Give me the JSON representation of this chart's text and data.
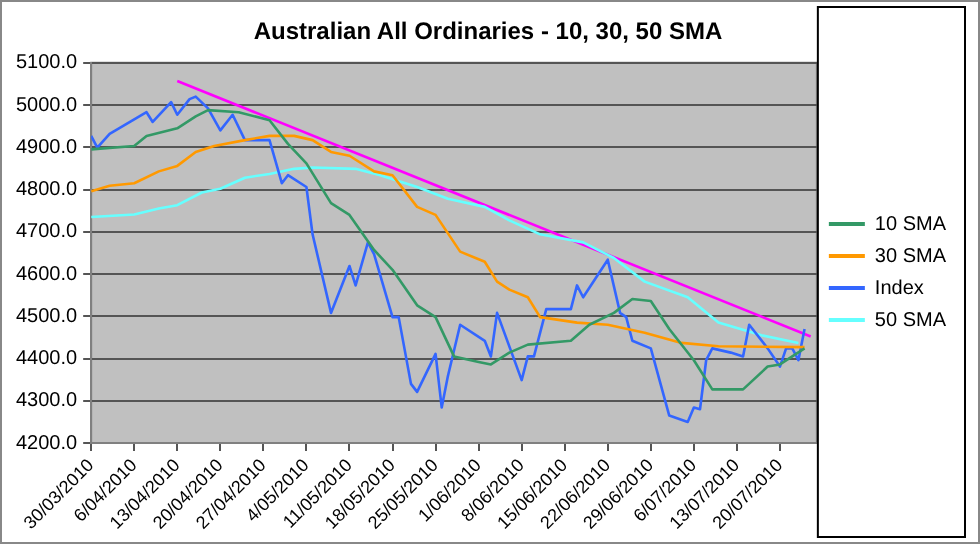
{
  "chart_data": {
    "type": "line",
    "title": "Australian All Ordinaries - 10, 30, 50 SMA",
    "xlim": [
      "2010-03-30",
      "2010-07-26"
    ],
    "xticks": [
      {
        "value": "2010-03-30",
        "label": "30/03/2010"
      },
      {
        "value": "2010-04-06",
        "label": "6/04/2010"
      },
      {
        "value": "2010-04-13",
        "label": "13/04/2010"
      },
      {
        "value": "2010-04-20",
        "label": "20/04/2010"
      },
      {
        "value": "2010-04-27",
        "label": "27/04/2010"
      },
      {
        "value": "2010-05-04",
        "label": "4/05/2010"
      },
      {
        "value": "2010-05-11",
        "label": "11/05/2010"
      },
      {
        "value": "2010-05-18",
        "label": "18/05/2010"
      },
      {
        "value": "2010-05-25",
        "label": "25/05/2010"
      },
      {
        "value": "2010-06-01",
        "label": "1/06/2010"
      },
      {
        "value": "2010-06-08",
        "label": "8/06/2010"
      },
      {
        "value": "2010-06-15",
        "label": "15/06/2010"
      },
      {
        "value": "2010-06-22",
        "label": "22/06/2010"
      },
      {
        "value": "2010-06-29",
        "label": "29/06/2010"
      },
      {
        "value": "2010-07-06",
        "label": "6/07/2010"
      },
      {
        "value": "2010-07-13",
        "label": "13/07/2010"
      },
      {
        "value": "2010-07-20",
        "label": "20/07/2010"
      }
    ],
    "ylim": [
      4200,
      5100
    ],
    "yticks": [
      {
        "value": 4200,
        "label": "4200.0"
      },
      {
        "value": 4300,
        "label": "4300.0"
      },
      {
        "value": 4400,
        "label": "4400.0"
      },
      {
        "value": 4500,
        "label": "4500.0"
      },
      {
        "value": 4600,
        "label": "4600.0"
      },
      {
        "value": 4700,
        "label": "4700.0"
      },
      {
        "value": 4800,
        "label": "4800.0"
      },
      {
        "value": 4900,
        "label": "4900.0"
      },
      {
        "value": 5000,
        "label": "5000.0"
      },
      {
        "value": 5100,
        "label": "5100.0"
      }
    ],
    "grid": "y",
    "legend": "right",
    "marker": "none",
    "line_style": "solid",
    "series": [
      {
        "name": "10 SMA",
        "color": "#339966",
        "x": [
          "2010-03-30",
          "2010-04-06",
          "2010-04-08",
          "2010-04-13",
          "2010-04-16",
          "2010-04-18",
          "2010-04-23",
          "2010-04-28",
          "2010-05-01",
          "2010-05-04",
          "2010-05-08",
          "2010-05-11",
          "2010-05-15",
          "2010-05-18",
          "2010-05-22",
          "2010-05-25",
          "2010-05-28",
          "2010-06-01",
          "2010-06-03",
          "2010-06-06",
          "2010-06-09",
          "2010-06-16",
          "2010-06-19",
          "2010-06-23",
          "2010-06-26",
          "2010-06-29",
          "2010-07-02",
          "2010-07-06",
          "2010-07-09",
          "2010-07-14",
          "2010-07-18",
          "2010-07-20",
          "2010-07-24"
        ],
        "values": [
          4895,
          4903,
          4927,
          4945,
          4973,
          4988,
          4983,
          4964,
          4908,
          4862,
          4768,
          4740,
          4657,
          4610,
          4526,
          4498,
          4405,
          4392,
          4386,
          4414,
          4433,
          4442,
          4480,
          4508,
          4541,
          4536,
          4470,
          4396,
          4327,
          4327,
          4381,
          4386,
          4424
        ]
      },
      {
        "name": "30 SMA",
        "color": "#ff9900",
        "x": [
          "2010-03-30",
          "2010-04-02",
          "2010-04-06",
          "2010-04-10",
          "2010-04-13",
          "2010-04-16",
          "2010-04-19",
          "2010-04-24",
          "2010-04-28",
          "2010-05-02",
          "2010-05-05",
          "2010-05-08",
          "2010-05-11",
          "2010-05-15",
          "2010-05-18",
          "2010-05-22",
          "2010-05-25",
          "2010-05-29",
          "2010-06-02",
          "2010-06-04",
          "2010-06-06",
          "2010-06-09",
          "2010-06-11",
          "2010-06-17",
          "2010-06-22",
          "2010-06-28",
          "2010-07-04",
          "2010-07-10",
          "2010-07-24"
        ],
        "values": [
          4796,
          4809,
          4815,
          4843,
          4856,
          4889,
          4903,
          4917,
          4927,
          4927,
          4917,
          4889,
          4880,
          4843,
          4834,
          4759,
          4740,
          4653,
          4629,
          4582,
          4563,
          4545,
          4498,
          4485,
          4480,
          4461,
          4437,
          4429,
          4427
        ]
      },
      {
        "name": "Index",
        "color": "#3366ff",
        "x": [
          "2010-03-30",
          "2010-03-31",
          "2010-04-02",
          "2010-04-08",
          "2010-04-09",
          "2010-04-12",
          "2010-04-13",
          "2010-04-15",
          "2010-04-16",
          "2010-04-18",
          "2010-04-20",
          "2010-04-22",
          "2010-04-24",
          "2010-04-28",
          "2010-04-30",
          "2010-05-01",
          "2010-05-04",
          "2010-05-05",
          "2010-05-08",
          "2010-05-11",
          "2010-05-12",
          "2010-05-14",
          "2010-05-15",
          "2010-05-18",
          "2010-05-19",
          "2010-05-21",
          "2010-05-22",
          "2010-05-25",
          "2010-05-26",
          "2010-05-27",
          "2010-05-29",
          "2010-06-02",
          "2010-06-03",
          "2010-06-04",
          "2010-06-08",
          "2010-06-09",
          "2010-06-10",
          "2010-06-12",
          "2010-06-16",
          "2010-06-17",
          "2010-06-18",
          "2010-06-22",
          "2010-06-24",
          "2010-06-25",
          "2010-06-26",
          "2010-06-29",
          "2010-07-02",
          "2010-07-05",
          "2010-07-06",
          "2010-07-07",
          "2010-07-08",
          "2010-07-09",
          "2010-07-12",
          "2010-07-14",
          "2010-07-15",
          "2010-07-18",
          "2010-07-20",
          "2010-07-21",
          "2010-07-22",
          "2010-07-23",
          "2010-07-24"
        ],
        "values": [
          4927,
          4899,
          4932,
          4983,
          4960,
          5007,
          4977,
          5014,
          5020,
          4992,
          4940,
          4977,
          4917,
          4917,
          4815,
          4834,
          4806,
          4694,
          4508,
          4619,
          4573,
          4675,
          4647,
          4498,
          4498,
          4340,
          4321,
          4411,
          4284,
          4358,
          4480,
          4442,
          4405,
          4508,
          4349,
          4405,
          4405,
          4517,
          4517,
          4573,
          4545,
          4634,
          4508,
          4498,
          4442,
          4424,
          4265,
          4250,
          4284,
          4280,
          4396,
          4424,
          4414,
          4405,
          4480,
          4424,
          4381,
          4424,
          4424,
          4396,
          4470
        ]
      },
      {
        "name": "50 SMA",
        "color": "#66ffff",
        "x": [
          "2010-03-30",
          "2010-04-06",
          "2010-04-10",
          "2010-04-13",
          "2010-04-17",
          "2010-04-20",
          "2010-04-24",
          "2010-04-28",
          "2010-05-02",
          "2010-05-05",
          "2010-05-12",
          "2010-05-16",
          "2010-05-22",
          "2010-05-27",
          "2010-06-02",
          "2010-06-06",
          "2010-06-11",
          "2010-06-18",
          "2010-06-23",
          "2010-06-28",
          "2010-07-05",
          "2010-07-10",
          "2010-07-17",
          "2010-07-23"
        ],
        "values": [
          4735,
          4741,
          4755,
          4763,
          4793,
          4802,
          4828,
          4837,
          4849,
          4852,
          4849,
          4834,
          4806,
          4778,
          4759,
          4727,
          4694,
          4675,
          4638,
          4582,
          4545,
          4485,
          4455,
          4437
        ]
      },
      {
        "type": "line",
        "color": "#ff00ff",
        "x": [
          "2010-04-13",
          "2010-07-25"
        ],
        "values": [
          5057,
          4452
        ]
      }
    ]
  }
}
